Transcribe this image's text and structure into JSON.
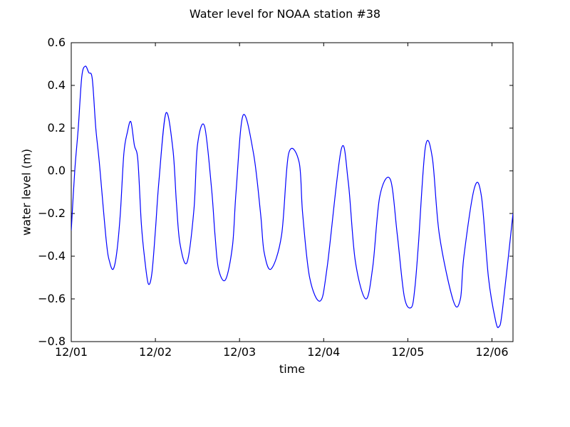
{
  "figure": {
    "title": "Water level for NOAA station #38",
    "xlabel": "time",
    "ylabel": "water level (m)"
  },
  "chart_data": {
    "type": "line",
    "title": "Water level for NOAA station #38",
    "xlabel": "time",
    "ylabel": "water level (m)",
    "xlim": [
      "12/01 00:00",
      "12/06 06:00"
    ],
    "ylim": [
      -0.8,
      0.6
    ],
    "xticks": [
      "12/01",
      "12/02",
      "12/03",
      "12/04",
      "12/05",
      "12/06"
    ],
    "yticks": [
      "0.6",
      "0.4",
      "0.2",
      "0.0",
      "−0.2",
      "−0.4",
      "−0.6",
      "−0.8"
    ],
    "ytick_values": [
      0.6,
      0.4,
      0.2,
      0.0,
      -0.2,
      -0.4,
      -0.6,
      -0.8
    ],
    "grid": false,
    "series_color": "#0000ff",
    "x": [
      "12/01 00:00",
      "12/01 01:00",
      "12/01 02:00",
      "12/01 03:00",
      "12/01 04:00",
      "12/01 05:00",
      "12/01 06:00",
      "12/01 07:00",
      "12/01 08:00",
      "12/01 10:00",
      "12/01 11:00",
      "12/01 12:00",
      "12/01 13:00",
      "12/01 14:00",
      "12/01 15:00",
      "12/01 16:00",
      "12/01 17:00",
      "12/01 18:00",
      "12/01 19:00",
      "12/01 20:00",
      "12/01 21:00",
      "12/01 22:00",
      "12/01 23:00",
      "12/02 00:00",
      "12/02 01:00",
      "12/02 03:00",
      "12/02 05:00",
      "12/02 06:00",
      "12/02 07:00",
      "12/02 09:00",
      "12/02 11:00",
      "12/02 12:00",
      "12/02 14:00",
      "12/02 16:00",
      "12/02 17:00",
      "12/02 18:00",
      "12/02 20:00",
      "12/02 22:00",
      "12/02 23:00",
      "12/03 01:00",
      "12/03 04:00",
      "12/03 06:00",
      "12/03 07:00",
      "12/03 09:00",
      "12/03 12:00",
      "12/03 14:00",
      "12/03 17:00",
      "12/03 18:00",
      "12/03 20:00",
      "12/03 23:00",
      "12/04 01:00",
      "12/04 05:00",
      "12/04 07:00",
      "12/04 09:00",
      "12/04 12:00",
      "12/04 14:00",
      "12/04 16:00",
      "12/04 19:00",
      "12/04 21:00",
      "12/04 23:00",
      "12/05 01:00",
      "12/05 02:00",
      "12/05 03:00",
      "12/05 05:00",
      "12/05 07:00",
      "12/05 09:00",
      "12/05 13:00",
      "12/05 15:00",
      "12/05 16:00",
      "12/05 19:00",
      "12/05 21:00",
      "12/05 23:00",
      "12/06 01:00",
      "12/06 02:00",
      "12/06 03:00",
      "12/06 06:00"
    ],
    "y": [
      -0.28,
      0.0,
      0.2,
      0.44,
      0.49,
      0.46,
      0.43,
      0.2,
      0.04,
      -0.33,
      -0.43,
      -0.46,
      -0.38,
      -0.2,
      0.08,
      0.18,
      0.23,
      0.12,
      0.05,
      -0.25,
      -0.42,
      -0.53,
      -0.48,
      -0.28,
      -0.05,
      0.27,
      0.1,
      -0.15,
      -0.34,
      -0.43,
      -0.18,
      0.12,
      0.21,
      -0.08,
      -0.3,
      -0.46,
      -0.51,
      -0.35,
      -0.1,
      0.26,
      0.08,
      -0.2,
      -0.38,
      -0.46,
      -0.3,
      0.08,
      0.04,
      -0.2,
      -0.5,
      -0.61,
      -0.45,
      0.1,
      -0.05,
      -0.42,
      -0.6,
      -0.45,
      -0.12,
      -0.04,
      -0.3,
      -0.59,
      -0.64,
      -0.55,
      -0.35,
      0.11,
      0.06,
      -0.3,
      -0.61,
      -0.6,
      -0.4,
      -0.08,
      -0.12,
      -0.5,
      -0.7,
      -0.73,
      -0.65,
      -0.2
    ]
  }
}
